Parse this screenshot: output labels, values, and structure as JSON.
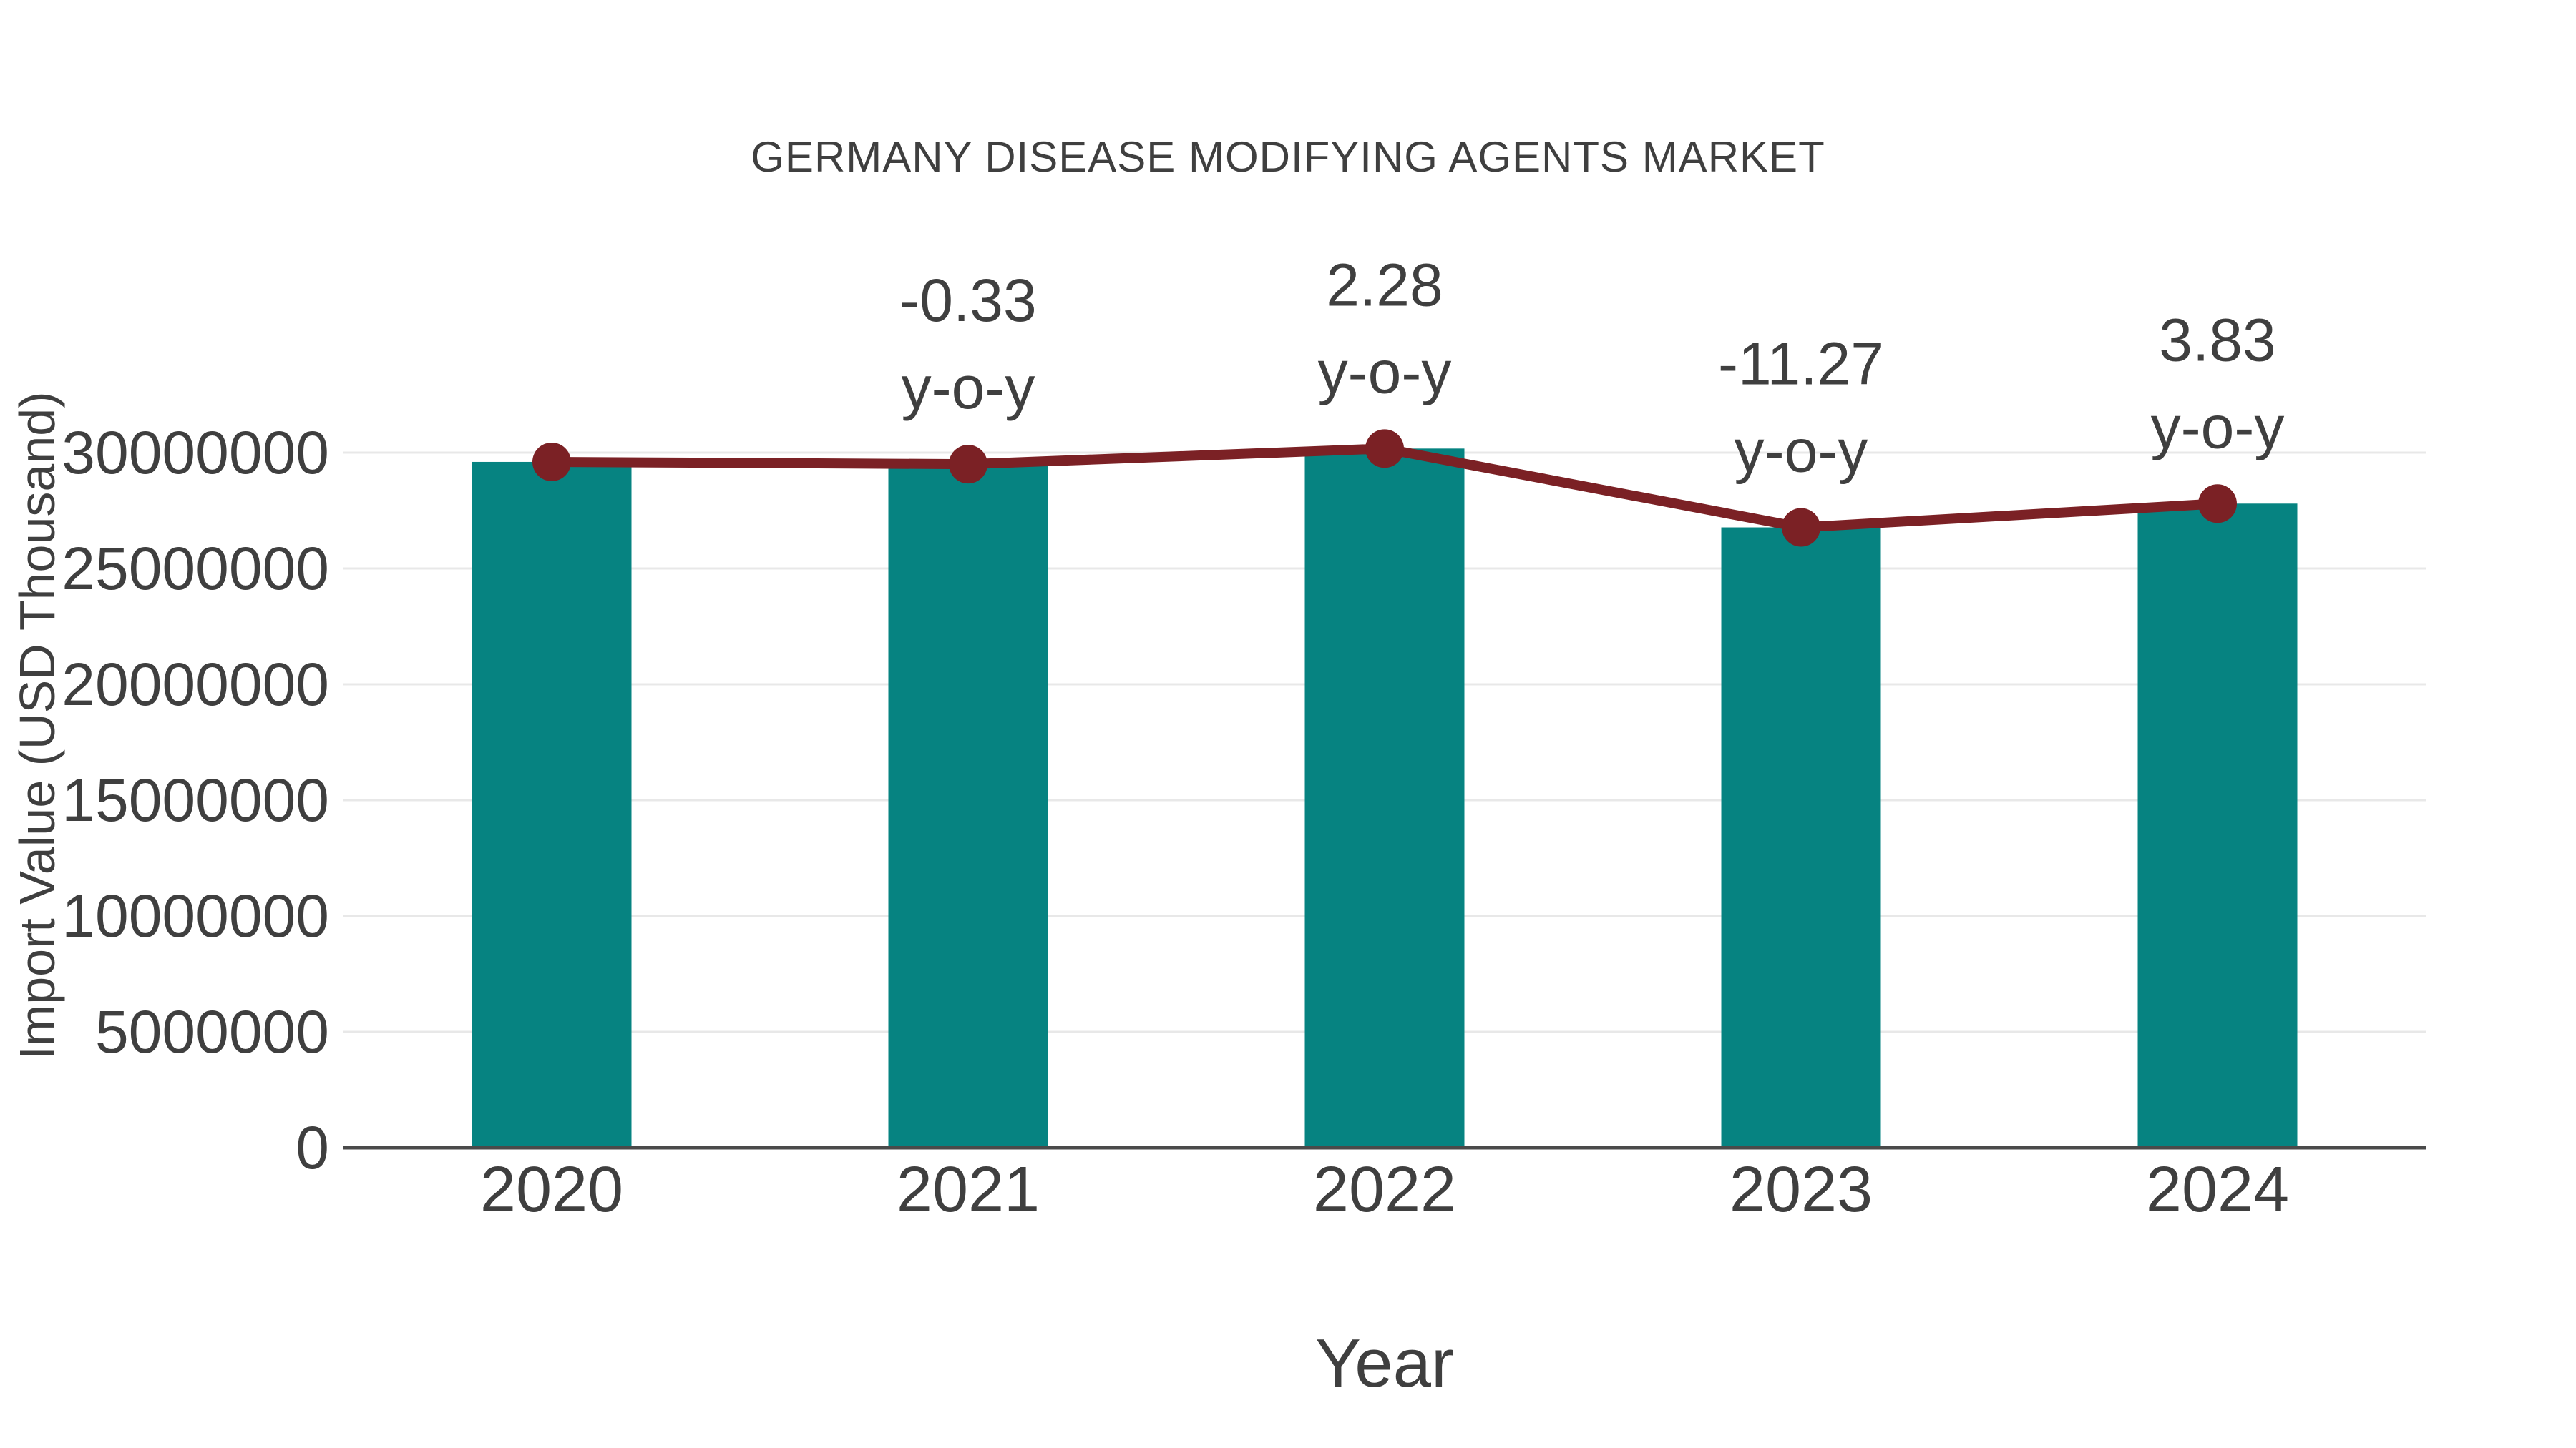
{
  "title": "GERMANY DISEASE MODIFYING AGENTS MARKET",
  "colors": {
    "background": "#ffffff",
    "bar": "#068381",
    "line": "#7b2125",
    "marker": "#7b2125",
    "text": "#3f3f3f",
    "grid": "#e8e8e8",
    "axis": "#4a4a4a"
  },
  "chart_data": {
    "type": "bar",
    "title": "GERMANY DISEASE MODIFYING AGENTS MARKET",
    "xlabel": "Year",
    "ylabel": "Import Value (USD Thousand)",
    "categories": [
      "2020",
      "2021",
      "2022",
      "2023",
      "2024"
    ],
    "series": [
      {
        "name": "Import Value bars",
        "type": "bar",
        "values": [
          29600000,
          29502000,
          30175000,
          26774000,
          27800000
        ]
      },
      {
        "name": "Import Value trend line",
        "type": "line",
        "values": [
          29600000,
          29502000,
          30175000,
          26774000,
          27800000
        ]
      }
    ],
    "annotations": [
      {
        "category": "2021",
        "value_label": "-0.33",
        "unit_label": "y-o-y"
      },
      {
        "category": "2022",
        "value_label": "2.28",
        "unit_label": "y-o-y"
      },
      {
        "category": "2023",
        "value_label": "-11.27",
        "unit_label": "y-o-y"
      },
      {
        "category": "2024",
        "value_label": "3.83",
        "unit_label": "y-o-y"
      }
    ],
    "ylim": [
      0,
      30000000
    ],
    "yticks": [
      0,
      5000000,
      10000000,
      15000000,
      20000000,
      25000000,
      30000000
    ],
    "ytick_labels": [
      "0",
      "5000000",
      "10000000",
      "15000000",
      "20000000",
      "25000000",
      "30000000"
    ],
    "grid": true,
    "legend": false
  }
}
